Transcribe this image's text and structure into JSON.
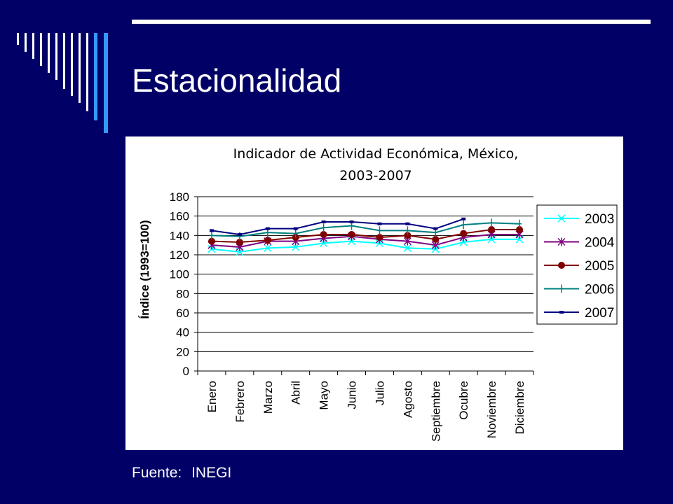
{
  "slide": {
    "title": "Estacionalidad",
    "source_label": "Fuente:",
    "source_value": "INEGI"
  },
  "colors": {
    "background": "#000066",
    "accent_line": "#ffffff",
    "accent_bars": "#3399ff",
    "plot_area": "#ffffff",
    "gridline": "#000000"
  },
  "chart_data": {
    "type": "line",
    "title": "Indicador de Actividad Económica, México,",
    "subtitle": "2003-2007",
    "xlabel": "",
    "ylabel": "Índice (1993=100)",
    "ylim": [
      0,
      180
    ],
    "yticks": [
      0,
      20,
      40,
      60,
      80,
      100,
      120,
      140,
      160,
      180
    ],
    "grid": true,
    "legend_position": "right",
    "categories": [
      "Enero",
      "Febrero",
      "Marzo",
      "Abril",
      "Mayo",
      "Junio",
      "Julio",
      "Agosto",
      "Septiembre",
      "Ocubre",
      "Noviembre",
      "Diciembre"
    ],
    "series": [
      {
        "name": "2003",
        "color": "#00ffff",
        "marker": "x",
        "values": [
          126,
          123,
          127,
          128,
          132,
          134,
          132,
          127,
          126,
          133,
          136,
          136
        ]
      },
      {
        "name": "2004",
        "color": "#800080",
        "marker": "star",
        "values": [
          130,
          128,
          134,
          134,
          137,
          139,
          136,
          134,
          130,
          138,
          141,
          141
        ]
      },
      {
        "name": "2005",
        "color": "#800000",
        "marker": "circle",
        "values": [
          134,
          133,
          135,
          138,
          141,
          141,
          138,
          140,
          136,
          142,
          146,
          146
        ]
      },
      {
        "name": "2006",
        "color": "#008080",
        "marker": "plus",
        "values": [
          140,
          139,
          143,
          142,
          148,
          150,
          145,
          145,
          143,
          151,
          153,
          152
        ]
      },
      {
        "name": "2007",
        "color": "#000080",
        "marker": "square",
        "values": [
          145,
          141,
          147,
          147,
          154,
          154,
          152,
          152,
          147,
          157,
          null,
          null
        ]
      }
    ]
  }
}
